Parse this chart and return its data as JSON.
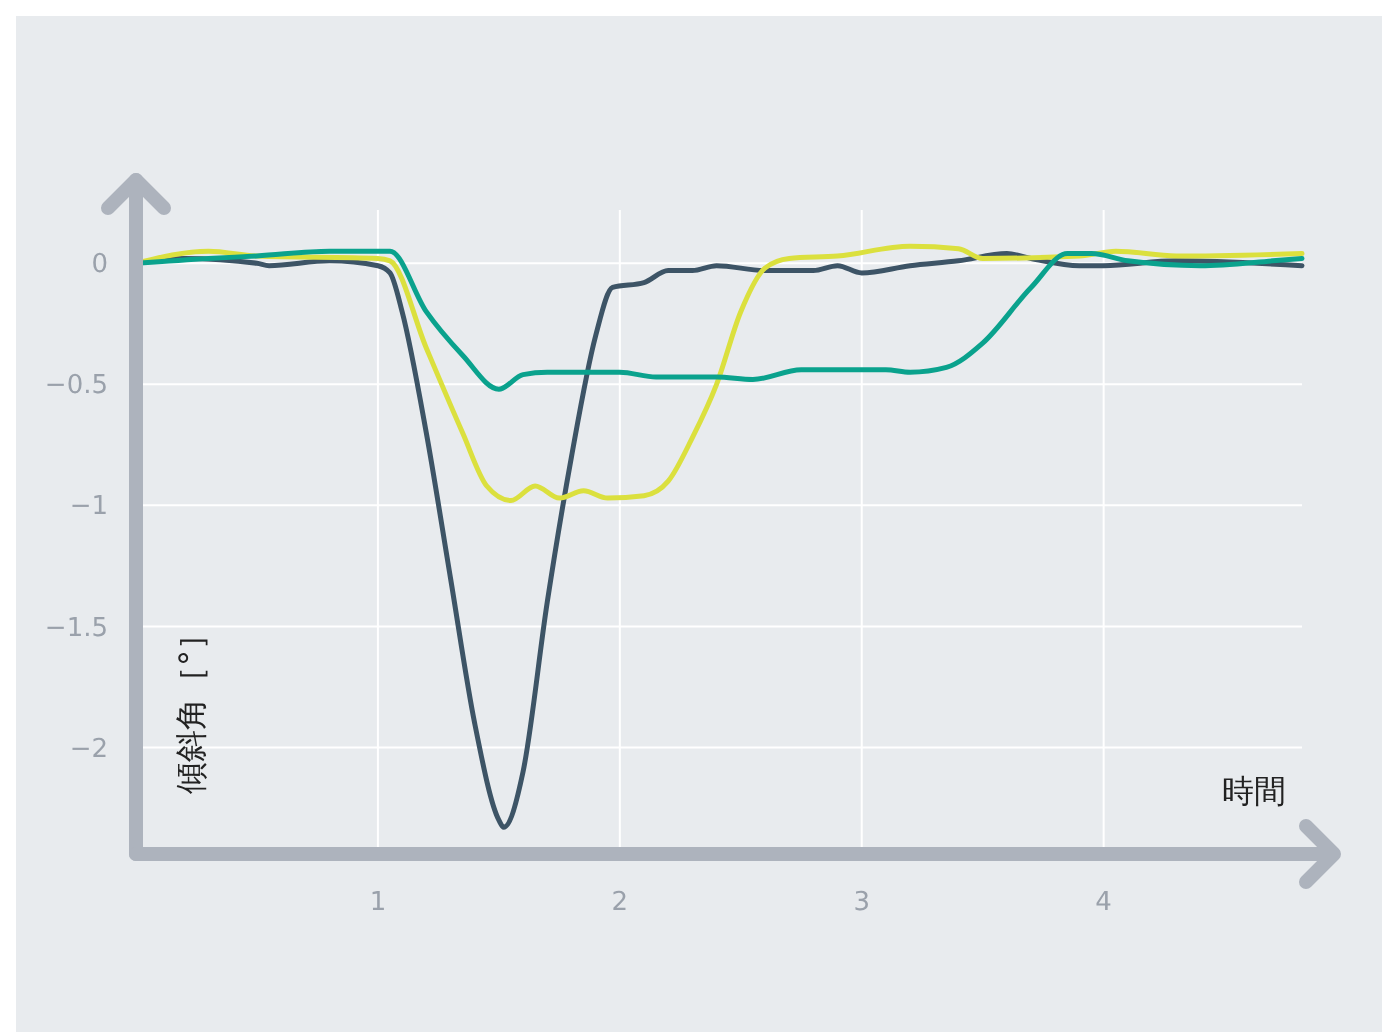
{
  "chart_data": {
    "type": "line",
    "xlabel": "時間",
    "ylabel": "傾斜角［°］",
    "xlim": [
      0,
      4.82
    ],
    "ylim": [
      -2.44,
      0.22
    ],
    "xticks": [
      1,
      2,
      3,
      4
    ],
    "yticks": [
      0,
      {
        "value": -0.5,
        "label": "−0.5"
      },
      {
        "value": -1,
        "label": "−1"
      },
      {
        "value": -1.5,
        "label": "−1.5"
      },
      {
        "value": -2,
        "label": "−2"
      }
    ],
    "grid": true,
    "marker": "none",
    "line_style": "solid",
    "series": [
      {
        "color": "#3d5466",
        "x": [
          0,
          0.2,
          0.5,
          0.55,
          0.8,
          1.0,
          1.05,
          1.1,
          1.2,
          1.3,
          1.4,
          1.5,
          1.52,
          1.6,
          1.7,
          1.8,
          1.9,
          1.97,
          2.1,
          2.2,
          2.3,
          2.4,
          2.6,
          2.8,
          2.9,
          3.0,
          3.2,
          3.4,
          3.6,
          3.7,
          3.9,
          4.0,
          4.3,
          4.82
        ],
        "values": [
          0,
          0.02,
          0,
          -0.01,
          0.01,
          -0.01,
          -0.04,
          -0.2,
          -0.7,
          -1.3,
          -1.9,
          -2.3,
          -2.33,
          -2.1,
          -1.4,
          -0.8,
          -0.3,
          -0.1,
          -0.08,
          -0.03,
          -0.03,
          -0.01,
          -0.03,
          -0.03,
          -0.01,
          -0.04,
          -0.01,
          0.01,
          0.04,
          0.02,
          -0.01,
          -0.01,
          0.01,
          -0.01
        ]
      },
      {
        "color": "#dbe03e",
        "x": [
          0,
          0.3,
          0.5,
          1.0,
          1.05,
          1.2,
          1.35,
          1.45,
          1.55,
          1.65,
          1.75,
          1.85,
          1.95,
          2.1,
          2.2,
          2.3,
          2.4,
          2.5,
          2.6,
          2.7,
          2.9,
          3.2,
          3.4,
          3.5,
          3.9,
          4.05,
          4.3,
          4.82
        ],
        "values": [
          0,
          0.05,
          0.03,
          0.02,
          0.01,
          -0.35,
          -0.7,
          -0.92,
          -0.98,
          -0.92,
          -0.97,
          -0.94,
          -0.97,
          -0.96,
          -0.9,
          -0.72,
          -0.5,
          -0.2,
          -0.02,
          0.02,
          0.03,
          0.07,
          0.06,
          0.02,
          0.03,
          0.05,
          0.03,
          0.04
        ]
      },
      {
        "color": "#0aa28d",
        "x": [
          0,
          0.3,
          0.5,
          0.8,
          1.05,
          1.2,
          1.35,
          1.5,
          1.6,
          1.7,
          2.0,
          2.15,
          2.4,
          2.55,
          2.75,
          3.1,
          3.2,
          3.35,
          3.5,
          3.7,
          3.85,
          3.95,
          4.1,
          4.4,
          4.7,
          4.82
        ],
        "values": [
          0,
          0.02,
          0.03,
          0.05,
          0.05,
          -0.2,
          -0.38,
          -0.52,
          -0.46,
          -0.45,
          -0.45,
          -0.47,
          -0.47,
          -0.48,
          -0.44,
          -0.44,
          -0.45,
          -0.43,
          -0.33,
          -0.1,
          0.04,
          0.04,
          0.01,
          -0.01,
          0.01,
          0.02
        ]
      }
    ]
  }
}
